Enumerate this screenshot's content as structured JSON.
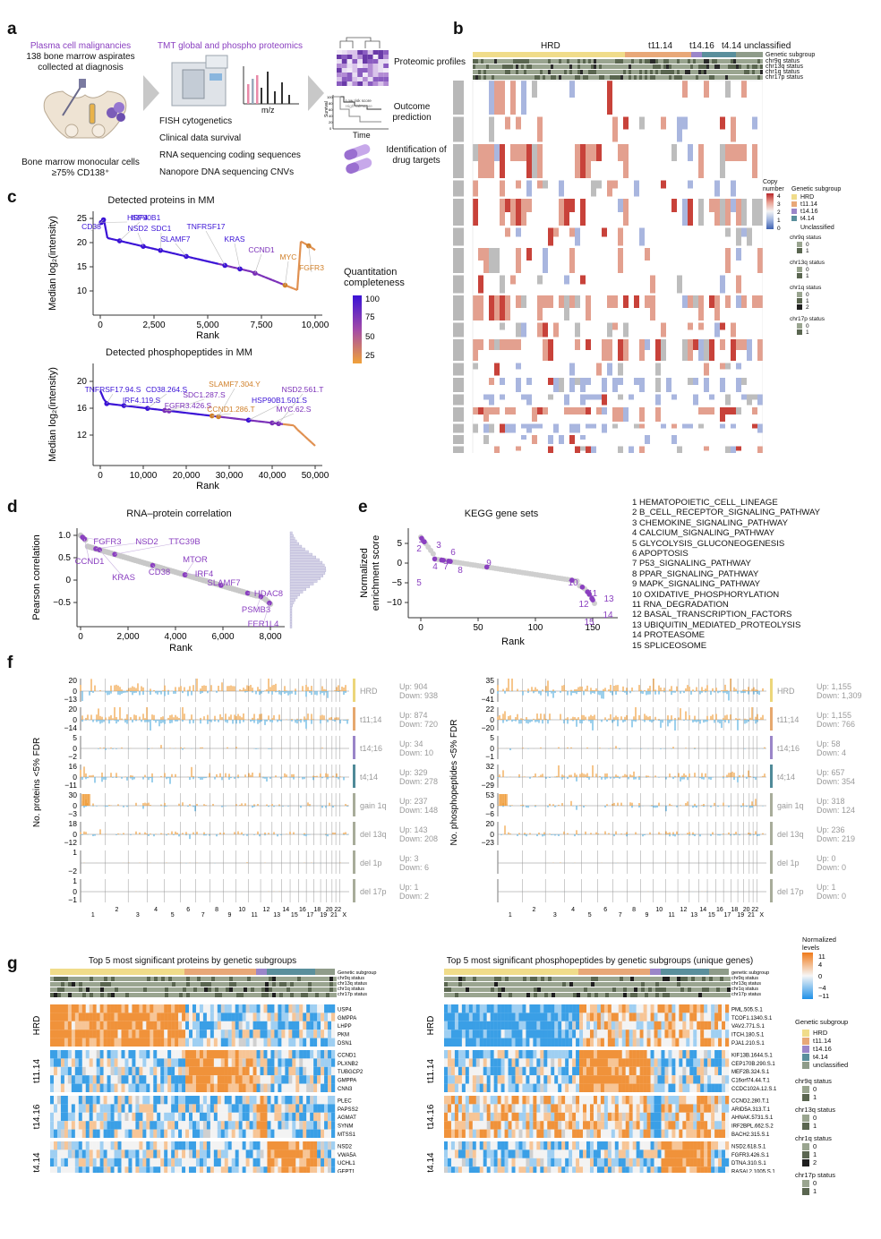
{
  "panels": {
    "a": "a",
    "b": "b",
    "c": "c",
    "d": "d",
    "e": "e",
    "f": "f",
    "g": "g"
  },
  "panel_a": {
    "cohort_title": "Plasma cell malignancies",
    "cohort_line1": "138 bone marrow aspirates",
    "cohort_line2": "collected at diagnosis",
    "cells_line1": "Bone marrow monocular cells",
    "cells_line2": "≥75% CD138⁺",
    "proteomics_title": "TMT global and phospho proteomics",
    "mz_label": "m/z",
    "methods": [
      "FISH cytogenetics",
      "Clinical data survival",
      "RNA sequencing coding sequences",
      "Nanopore DNA sequencing CNVs"
    ],
    "outputs": [
      "Proteomic profiles",
      "Outcome prediction",
      "Identification of drug targets"
    ],
    "km_ylabel": "Survival",
    "km_xlabel": "Time",
    "km_low": "Low risk score",
    "km_high": "High risk score",
    "km_ticks": [
      "100",
      "80",
      "60",
      "40",
      "20",
      "0"
    ]
  },
  "panel_b": {
    "subgroups": [
      "HRD",
      "t11.14",
      "t14.16",
      "t4.14 unclassified"
    ],
    "track_labels": [
      "Genetic subgroup",
      "chr9q status",
      "chr13q status",
      "chr1q status",
      "chr17p status"
    ],
    "chromosomes": [
      "1",
      "2",
      "3",
      "4",
      "5",
      "6",
      "7",
      "8",
      "9",
      "10",
      "11",
      "12",
      "13",
      "14",
      "15",
      "16",
      "17",
      "18",
      "19",
      "20",
      "21",
      "22"
    ],
    "legend_copy_title": "Copy number",
    "legend_copy_values": [
      "4",
      "3",
      "2",
      "1",
      "0"
    ],
    "legend_subgroup_title": "Genetic subgroup",
    "legend_subgroups": [
      "HRD",
      "t11.14",
      "t14.16",
      "t4.14",
      "Unclassified"
    ],
    "legend_status": [
      {
        "title": "chr9q status",
        "levels": [
          "0",
          "1"
        ]
      },
      {
        "title": "chr13q status",
        "levels": [
          "0",
          "1"
        ]
      },
      {
        "title": "chr1q status",
        "levels": [
          "0",
          "1",
          "2"
        ]
      },
      {
        "title": "chr17p status",
        "levels": [
          "0",
          "1"
        ]
      }
    ]
  },
  "panel_c": {
    "proteins": {
      "title": "Detected proteins in MM",
      "xlabel": "Rank",
      "ylabel": "Median log₂(intensity)",
      "xticks": [
        "0",
        "2,500",
        "5,000",
        "7,500",
        "10,000"
      ],
      "yticks": [
        "25",
        "20",
        "15",
        "10"
      ],
      "labels": [
        "HSP90B1",
        "IRF4",
        "CD38",
        "NSD2",
        "SDC1",
        "SLAMF7",
        "TNFRSF17",
        "KRAS",
        "CCND1",
        "MYC",
        "FGFR3"
      ]
    },
    "phospho": {
      "title": "Detected phosphopeptides in MM",
      "xlabel": "Rank",
      "ylabel": "Median log₂(intensity)",
      "xticks": [
        "0",
        "10,000",
        "20,000",
        "30,000",
        "40,000",
        "50,000"
      ],
      "yticks": [
        "20",
        "16",
        "12"
      ],
      "labels": [
        "TNFRSF17.94.S",
        "CD38.264.S",
        "SLAMF7.304.Y",
        "SDC1.287.S",
        "IRF4.119.S",
        "FGFR3.426.S",
        "CCND1.286.T",
        "HSP90B1.501.S",
        "NSD2.561.T",
        "MYC.62.S"
      ]
    },
    "colorbar_title_1": "Quantitation",
    "colorbar_title_2": "completeness",
    "colorbar_ticks": [
      "100",
      "75",
      "50",
      "25"
    ],
    "colors": {
      "high": "#3a12d6",
      "mid": "#a24aa8",
      "low": "#f0a23a"
    }
  },
  "panel_d": {
    "title": "RNA–protein correlation",
    "xlabel": "Rank",
    "ylabel": "Pearson correlation",
    "xticks": [
      "0",
      "2,000",
      "4,000",
      "6,000",
      "8,000"
    ],
    "yticks": [
      "1.0",
      "0.5",
      "0",
      "−0.5"
    ],
    "labels": [
      "FGFR3",
      "NSD2",
      "TTC39B",
      "CCND1",
      "MTOR",
      "KRAS",
      "CD38",
      "IRF4",
      "SLAMF7",
      "HDAC8",
      "PSMB3",
      "FER1L4"
    ]
  },
  "panel_e": {
    "title": "KEGG gene sets",
    "xlabel": "Rank",
    "ylabel_1": "Normalized",
    "ylabel_2": "enrichment score",
    "xticks": [
      "0",
      "50",
      "100",
      "150"
    ],
    "yticks": [
      "5",
      "0",
      "−5",
      "−10"
    ],
    "point_labels": [
      "1",
      "2",
      "3",
      "4",
      "5",
      "6",
      "7",
      "8",
      "9",
      "10",
      "11",
      "12",
      "13",
      "14",
      "15"
    ],
    "gene_sets": [
      "1 HEMATOPOIETIC_CELL_LINEAGE",
      "2 B_CELL_RECEPTOR_SIGNALING_PATHWAY",
      "3 CHEMOKINE_SIGNALING_PATHWAY",
      "4 CALCIUM_SIGNALING_PATHWAY",
      "5 GLYCOLYSIS_GLUCONEOGENESIS",
      "6 APOPTOSIS",
      "7 P53_SIGNALING_PATHWAY",
      "8 PPAR_SIGNALING_PATHWAY",
      "9 MAPK_SIGNALING_PATHWAY",
      "10 OXIDATIVE_PHOSPHORYLATION",
      "11 RNA_DEGRADATION",
      "12 BASAL_TRANSCRIPTION_FACTORS",
      "13 UBIQUITIN_MEDIATED_PROTEOLYSIS",
      "14 PROTEASOME",
      "15 SPLICEOSOME"
    ]
  },
  "panel_f": {
    "left_ylabel": "No. proteins <5% FDR",
    "right_ylabel": "No. phosphopeptides <5% FDR",
    "chrom_ticks": [
      "1",
      "2",
      "3",
      "4",
      "5",
      "6",
      "7",
      "8",
      "9",
      "10",
      "11",
      "12",
      "13",
      "14",
      "15",
      "16",
      "17",
      "18",
      "19",
      "20",
      "21",
      "22",
      "X"
    ],
    "left_rows": [
      {
        "label": "HRD",
        "up": "Up: 904",
        "down": "Down: 938",
        "ymax": "20",
        "ymid": "0",
        "ymin": "−13",
        "color": "#ecd67a"
      },
      {
        "label": "t11;14",
        "up": "Up: 874",
        "down": "Down: 720",
        "ymax": "20",
        "ymid": "0",
        "ymin": "−14",
        "color": "#e6a86e"
      },
      {
        "label": "t14;16",
        "up": "Up: 34",
        "down": "Down: 10",
        "ymax": "5",
        "ymid": "0",
        "ymin": "−2",
        "color": "#9a85c8"
      },
      {
        "label": "t4;14",
        "up": "Up: 329",
        "down": "Down: 278",
        "ymax": "16",
        "ymid": "0",
        "ymin": "−11",
        "color": "#4f8a98"
      },
      {
        "label": "gain 1q",
        "up": "Up: 237",
        "down": "Down: 148",
        "ymax": "30",
        "ymid": "0",
        "ymin": "−3",
        "color": "#a8ac9a"
      },
      {
        "label": "del 13q",
        "up": "Up: 143",
        "down": "Down: 208",
        "ymax": "18",
        "ymid": "0",
        "ymin": "−12",
        "color": "#a8ac9a"
      },
      {
        "label": "del 1p",
        "up": "Up: 3",
        "down": "Down: 6",
        "ymax": "1",
        "ymid": "",
        "ymin": "−2",
        "color": "#a8ac9a"
      },
      {
        "label": "del 17p",
        "up": "Up: 1",
        "down": "Down: 2",
        "ymax": "1",
        "ymid": "0",
        "ymin": "−1",
        "color": "#a8ac9a"
      }
    ],
    "right_rows": [
      {
        "label": "HRD",
        "up": "Up: 1,155",
        "down": "Down: 1,309",
        "ymax": "35",
        "ymid": "0",
        "ymin": "−41",
        "color": "#ecd67a"
      },
      {
        "label": "t11;14",
        "up": "Up: 1,155",
        "down": "Down: 766",
        "ymax": "22",
        "ymid": "0",
        "ymin": "−20",
        "color": "#e6a86e"
      },
      {
        "label": "t14;16",
        "up": "Up: 58",
        "down": "Down: 4",
        "ymax": "5",
        "ymid": "0",
        "ymin": "−1",
        "color": "#9a85c8"
      },
      {
        "label": "t4;14",
        "up": "Up: 657",
        "down": "Down: 354",
        "ymax": "32",
        "ymid": "0",
        "ymin": "−29",
        "color": "#4f8a98"
      },
      {
        "label": "gain 1q",
        "up": "Up: 318",
        "down": "Down: 124",
        "ymax": "53",
        "ymid": "0",
        "ymin": "−6",
        "color": "#a8ac9a"
      },
      {
        "label": "del 13q",
        "up": "Up: 236",
        "down": "Down: 219",
        "ymax": "20",
        "ymid": "0",
        "ymin": "−23",
        "color": "#a8ac9a"
      },
      {
        "label": "del 1p",
        "up": "Up: 0",
        "down": "Down: 0",
        "ymax": "",
        "ymid": "",
        "ymin": "",
        "color": "#a8ac9a"
      },
      {
        "label": "del 17p",
        "up": "Up: 1",
        "down": "Down: 0",
        "ymax": "",
        "ymid": "",
        "ymin": "",
        "color": "#a8ac9a"
      }
    ]
  },
  "panel_g": {
    "left_title": "Top 5 most significant proteins by genetic subgroups",
    "right_title": "Top 5 most significant phosphopeptides by genetic subgroups (unique genes)",
    "track_labels_left": [
      "Genetic subgroup",
      "chr9q status",
      "chr13q status",
      "chr1q status",
      "chr17p status"
    ],
    "track_labels_right": [
      "genetic subgroup",
      "chr9q status",
      "chr13q status",
      "chr1q status",
      "chr17p status"
    ],
    "row_groups": [
      "HRD",
      "t11.14",
      "t14.16",
      "t4.14"
    ],
    "left_genes": [
      [
        "USP4",
        "GMPPA",
        "LHPP",
        "PKM",
        "DSN1"
      ],
      [
        "CCND1",
        "PLXNB2",
        "TUBGCP2",
        "GMPPA",
        "CNN3"
      ],
      [
        "PLEC",
        "PAPSS2",
        "AGMAT",
        "SYNM",
        "MTSS1"
      ],
      [
        "NSD2",
        "VWA5A",
        "UCHL1",
        "GFPT1",
        "NUFIP2"
      ]
    ],
    "right_genes": [
      [
        "PML.505.S.1",
        "TCOF1.1340.S.1",
        "VAV2.771.S.1",
        "ITCH.180.S.1",
        "PJA1.210.S.1"
      ],
      [
        "KIF13B.1644.S.1",
        "CEP170B.290.S.1",
        "MEF2B.324.S.1",
        "C16orf74.44.T.1",
        "CCDC102A.12.S.1"
      ],
      [
        "CCND2.280.T.1",
        "ARID5A.313.T.1",
        "AHNAK.5731.S.1",
        "IRF2BPL.662.S.2",
        "BACH2.315.S.1"
      ],
      [
        "NSD2.618.S.1",
        "FGFR3.426.S.1",
        "DTNA.310.S.1",
        "RASAL2.1005.S.1",
        "AGAP1.468.S.1"
      ]
    ],
    "legend_norm_title_1": "Normalized",
    "legend_norm_title_2": "levels",
    "legend_norm_ticks": [
      "11",
      "4",
      "0",
      "−4",
      "−11"
    ],
    "legend_subgroup_title": "Genetic subgroup",
    "legend_subgroups": [
      "HRD",
      "t11.14",
      "t14.16",
      "t4.14",
      "unclassified"
    ],
    "legend_status": [
      {
        "title": "chr9q status",
        "levels": [
          "0",
          "1"
        ]
      },
      {
        "title": "chr13q status",
        "levels": [
          "0",
          "1"
        ]
      },
      {
        "title": "chr1q status",
        "levels": [
          "0",
          "1",
          "2"
        ]
      },
      {
        "title": "chr17p status",
        "levels": [
          "0",
          "1"
        ]
      }
    ]
  },
  "colors": {
    "hrd": "#f0dc8a",
    "t1114": "#e8a878",
    "t1416": "#9b86c9",
    "t414": "#5a8f9c",
    "unclassified": "#8f9c8a",
    "cnv_gain": "#e3a08f",
    "cnv_amp": "#c8423a",
    "cnv_loss": "#a9b6df",
    "cnv_gray": "#bdbdbd",
    "up_orange": "#f0a040",
    "down_blue": "#5bb0e0",
    "heat_hi": "#f08a30",
    "heat_lo": "#3aa0e8"
  }
}
